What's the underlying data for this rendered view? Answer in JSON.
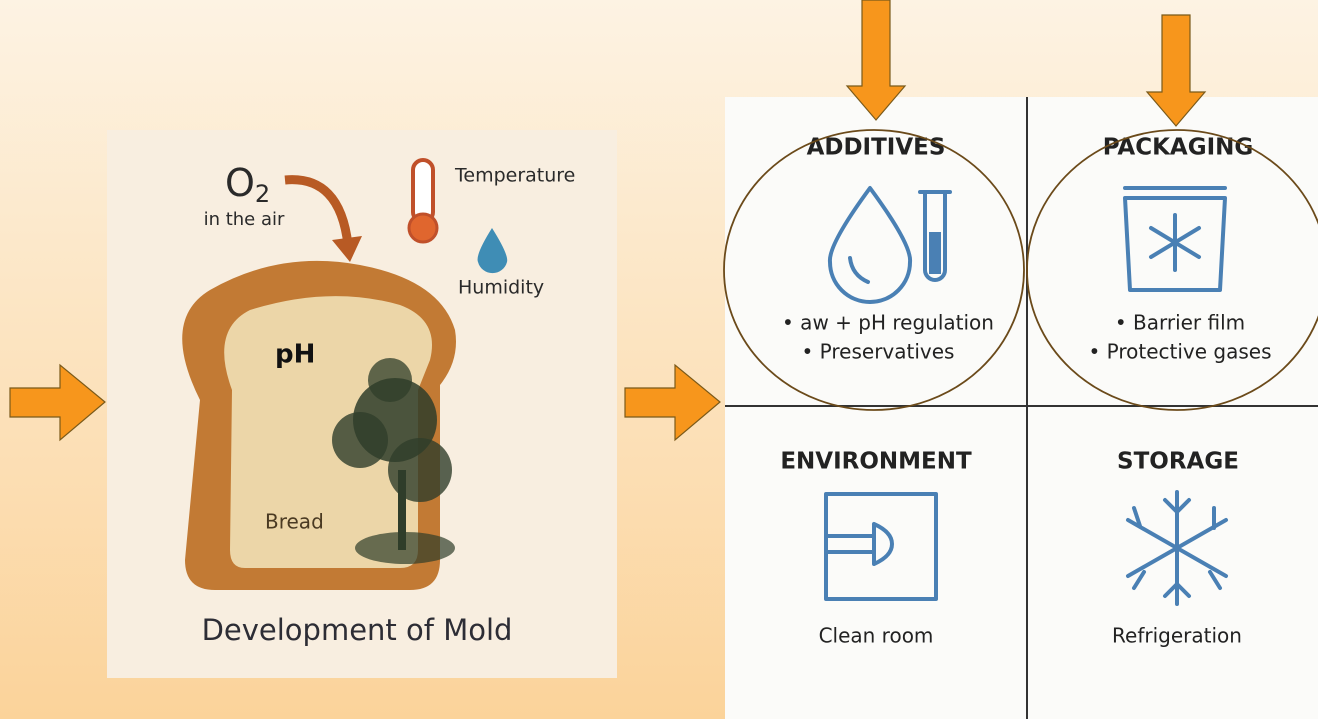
{
  "left_panel": {
    "oxygen": {
      "base": "O",
      "subscript": "2"
    },
    "oxygen_caption": "in the air",
    "temperature": "Temperature",
    "humidity": "Humidity",
    "ph": "pH",
    "bread": "Bread",
    "title": "Development of Mold"
  },
  "right_panel": {
    "quadrants": [
      {
        "title": "ADDITIVES",
        "lines": [
          "• aw + pH regulation",
          "• Preservatives"
        ]
      },
      {
        "title": "PACKAGING",
        "lines": [
          "• Barrier film",
          "• Protective gases"
        ]
      },
      {
        "title": "ENVIRONMENT",
        "lines": [
          "Clean room"
        ]
      },
      {
        "title": "STORAGE",
        "lines": [
          "Refrigeration"
        ]
      }
    ]
  }
}
